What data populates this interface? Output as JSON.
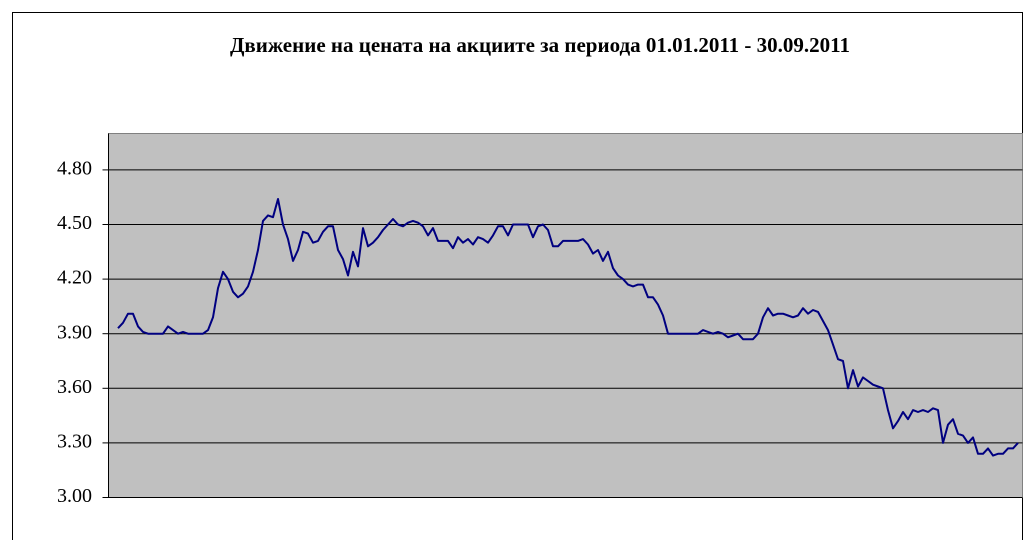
{
  "chart_data": {
    "type": "line",
    "title": "Движение на цената на акциите за периода 01.01.2011 - 30.09.2011",
    "series": [
      {
        "color": "#000080",
        "values": [
          3.93,
          3.96,
          4.01,
          4.01,
          3.94,
          3.91,
          3.9,
          3.9,
          3.9,
          3.9,
          3.94,
          3.92,
          3.9,
          3.91,
          3.9,
          3.9,
          3.9,
          3.9,
          3.92,
          3.99,
          4.15,
          4.24,
          4.2,
          4.13,
          4.1,
          4.12,
          4.16,
          4.24,
          4.36,
          4.52,
          4.55,
          4.54,
          4.64,
          4.5,
          4.42,
          4.3,
          4.36,
          4.46,
          4.45,
          4.4,
          4.41,
          4.46,
          4.49,
          4.49,
          4.36,
          4.31,
          4.22,
          4.35,
          4.27,
          4.48,
          4.38,
          4.4,
          4.43,
          4.47,
          4.5,
          4.53,
          4.5,
          4.49,
          4.51,
          4.52,
          4.51,
          4.49,
          4.44,
          4.48,
          4.41,
          4.41,
          4.41,
          4.37,
          4.43,
          4.4,
          4.42,
          4.39,
          4.43,
          4.42,
          4.4,
          4.44,
          4.49,
          4.49,
          4.44,
          4.5,
          4.5,
          4.5,
          4.5,
          4.43,
          4.49,
          4.5,
          4.47,
          4.38,
          4.38,
          4.41,
          4.41,
          4.41,
          4.41,
          4.42,
          4.39,
          4.34,
          4.36,
          4.3,
          4.35,
          4.26,
          4.22,
          4.2,
          4.17,
          4.16,
          4.17,
          4.17,
          4.1,
          4.1,
          4.06,
          4.0,
          3.9,
          3.9,
          3.9,
          3.9,
          3.9,
          3.9,
          3.9,
          3.92,
          3.91,
          3.9,
          3.91,
          3.9,
          3.88,
          3.89,
          3.9,
          3.87,
          3.87,
          3.87,
          3.9,
          3.99,
          4.04,
          4.0,
          4.01,
          4.01,
          4.0,
          3.99,
          4.0,
          4.04,
          4.01,
          4.03,
          4.02,
          3.97,
          3.92,
          3.84,
          3.76,
          3.75,
          3.6,
          3.7,
          3.61,
          3.66,
          3.64,
          3.62,
          3.61,
          3.6,
          3.48,
          3.38,
          3.42,
          3.47,
          3.43,
          3.48,
          3.47,
          3.48,
          3.47,
          3.49,
          3.48,
          3.3,
          3.4,
          3.43,
          3.35,
          3.34,
          3.3,
          3.33,
          3.24,
          3.24,
          3.27,
          3.23,
          3.24,
          3.24,
          3.27,
          3.27,
          3.3
        ]
      }
    ],
    "ylim": [
      3,
      5
    ],
    "yticks": [
      {
        "value": 3,
        "label": "3.00"
      },
      {
        "value": 3.3,
        "label": "3.30"
      },
      {
        "value": 3.6,
        "label": "3.60"
      },
      {
        "value": 3.9,
        "label": "3.90"
      },
      {
        "value": 4.2,
        "label": "4.20"
      },
      {
        "value": 4.5,
        "label": "4.50"
      },
      {
        "value": 4.8,
        "label": "4.80"
      }
    ],
    "grid": true
  }
}
